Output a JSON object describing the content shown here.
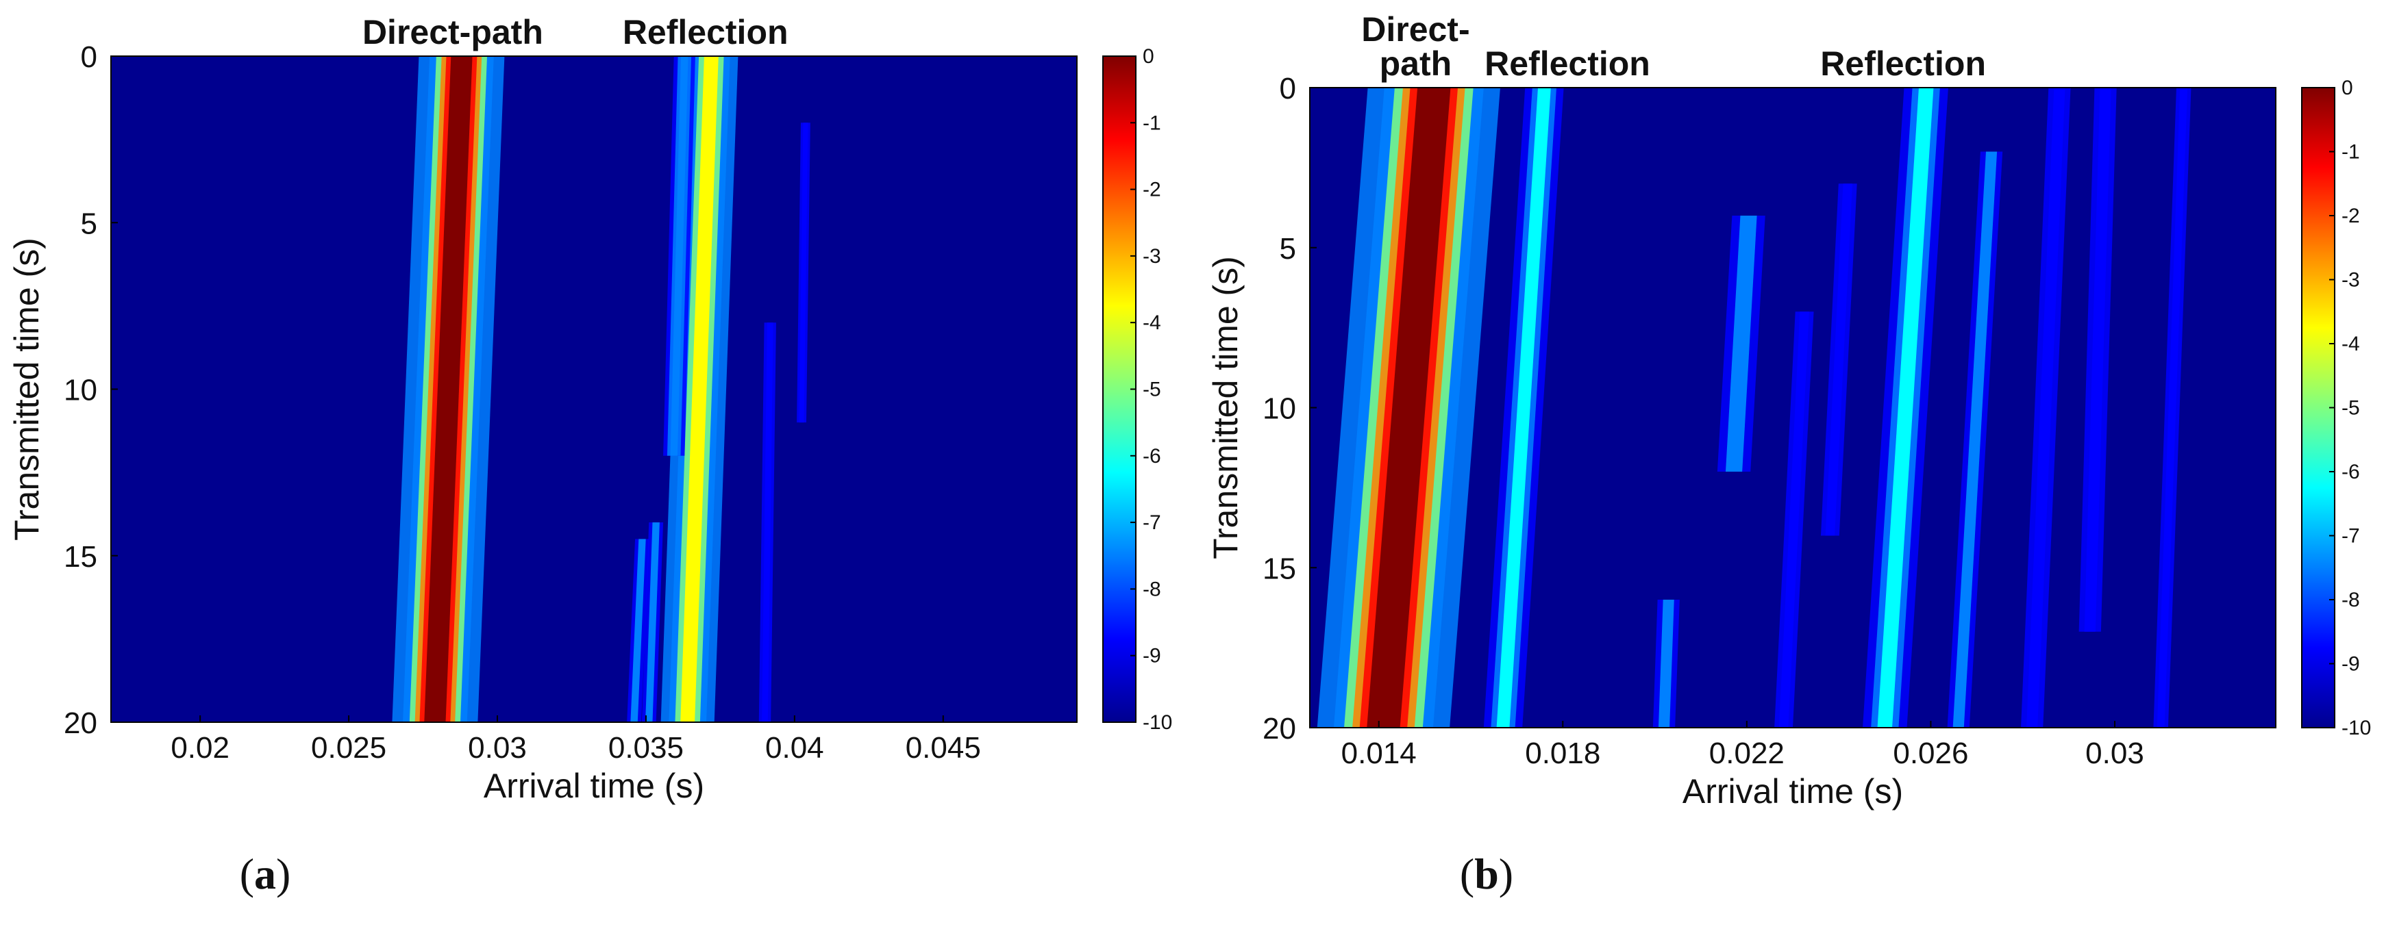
{
  "colors": {
    "background": "#00008f",
    "axis": "#000000"
  },
  "colormap": [
    "#00008f",
    "#0000ff",
    "#0080ff",
    "#00ffff",
    "#80ff80",
    "#ffff00",
    "#ff8000",
    "#ff0000",
    "#800000"
  ],
  "panels": [
    {
      "label_open": "(",
      "label_letter": "a",
      "label_close": ")"
    },
    {
      "label_open": "(",
      "label_letter": "b",
      "label_close": ")"
    }
  ],
  "chart_data": [
    {
      "type": "heatmap",
      "xlabel": "Arrival time (s)",
      "ylabel": "Transmitted time (s)",
      "xlim": [
        0.017,
        0.0495
      ],
      "ylim": [
        0,
        20
      ],
      "y_reversed": true,
      "x_ticks": [
        0.02,
        0.025,
        0.03,
        0.035,
        0.04,
        0.045
      ],
      "x_tick_labels": [
        "0.02",
        "0.025",
        "0.03",
        "0.035",
        "0.04",
        "0.045"
      ],
      "y_ticks": [
        0,
        5,
        10,
        15,
        20
      ],
      "y_tick_labels": [
        "0",
        "5",
        "10",
        "15",
        "20"
      ],
      "colorbar": {
        "range": [
          -10,
          0
        ],
        "ticks": [
          0,
          -1,
          -2,
          -3,
          -4,
          -5,
          -6,
          -7,
          -8,
          -9,
          -10
        ],
        "tick_labels": [
          "0",
          "-1",
          "-2",
          "-3",
          "-4",
          "-5",
          "-6",
          "-7",
          "-8",
          "-9",
          "-10"
        ]
      },
      "annotations": [
        {
          "text": "Direct-path",
          "x": 0.0285
        },
        {
          "text": "Reflection",
          "x": 0.037
        }
      ],
      "paths": [
        {
          "x0": 0.0288,
          "x20": 0.0279,
          "level": 0,
          "width": 0.0009
        },
        {
          "x0": 0.0372,
          "x20": 0.0364,
          "level": -4,
          "width": 0.0006
        },
        {
          "x0": 0.0363,
          "x20": 0.0357,
          "level": -7,
          "width": 0.0003,
          "y_start": 0,
          "y_end": 12
        },
        {
          "x0": 0.0359,
          "x20": 0.0351,
          "level": -8,
          "width": 0.0003,
          "y_start": 14,
          "y_end": 20
        },
        {
          "x0": 0.0356,
          "x20": 0.0346,
          "level": -8,
          "width": 0.0003,
          "y_start": 14.5,
          "y_end": 20
        },
        {
          "x0": 0.0404,
          "x20": 0.0401,
          "level": -8.5,
          "width": 0.0002,
          "y_start": 2,
          "y_end": 11
        },
        {
          "x0": 0.0393,
          "x20": 0.039,
          "level": -8.5,
          "width": 0.00025,
          "y_start": 8,
          "y_end": 20
        }
      ]
    },
    {
      "type": "heatmap",
      "xlabel": "Arrival time (s)",
      "ylabel": "Transmitted time (s)",
      "xlim": [
        0.0125,
        0.0335
      ],
      "ylim": [
        0,
        20
      ],
      "y_reversed": true,
      "x_ticks": [
        0.014,
        0.018,
        0.022,
        0.026,
        0.03
      ],
      "x_tick_labels": [
        "0.014",
        "0.018",
        "0.022",
        "0.026",
        "0.03"
      ],
      "y_ticks": [
        0,
        5,
        10,
        15,
        20
      ],
      "y_tick_labels": [
        "0",
        "5",
        "10",
        "15",
        "20"
      ],
      "colorbar": {
        "range": [
          -10,
          0
        ],
        "ticks": [
          0,
          -1,
          -2,
          -3,
          -4,
          -5,
          -6,
          -7,
          -8,
          -9,
          -10
        ],
        "tick_labels": [
          "0",
          "-1",
          "-2",
          "-3",
          "-4",
          "-5",
          "-6",
          "-7",
          "-8",
          "-9",
          "-10"
        ]
      },
      "annotations": [
        {
          "text": "Direct-",
          "text2": "path",
          "x": 0.0148
        },
        {
          "text": "Reflection",
          "x": 0.0181
        },
        {
          "text": "Reflection",
          "x": 0.0254
        }
      ],
      "paths": [
        {
          "x0": 0.0152,
          "x20": 0.0141,
          "level": 0,
          "width": 0.0009
        },
        {
          "x0": 0.0176,
          "x20": 0.0167,
          "level": -6.5,
          "width": 0.00035
        },
        {
          "x0": 0.0259,
          "x20": 0.025,
          "level": -6,
          "width": 0.0004
        },
        {
          "x0": 0.0222,
          "x20": 0.0214,
          "level": -8,
          "width": 0.00045,
          "y_start": 4,
          "y_end": 12
        },
        {
          "x0": 0.0207,
          "x20": 0.0202,
          "level": -8,
          "width": 0.0003,
          "y_start": 16,
          "y_end": 20
        },
        {
          "x0": 0.0235,
          "x20": 0.0228,
          "level": -8.5,
          "width": 0.00025,
          "y_start": 7,
          "y_end": 20
        },
        {
          "x0": 0.0243,
          "x20": 0.0236,
          "level": -8.5,
          "width": 0.00025,
          "y_start": 3,
          "y_end": 14
        },
        {
          "x0": 0.0274,
          "x20": 0.0266,
          "level": -8,
          "width": 0.0003,
          "y_start": 2,
          "y_end": 20
        },
        {
          "x0": 0.0288,
          "x20": 0.0282,
          "level": -8.5,
          "width": 0.0003,
          "y_start": 0,
          "y_end": 20
        },
        {
          "x0": 0.0298,
          "x20": 0.0294,
          "level": -9,
          "width": 0.0003,
          "y_start": 0,
          "y_end": 17
        },
        {
          "x0": 0.0315,
          "x20": 0.031,
          "level": -9,
          "width": 0.0002,
          "y_start": 0,
          "y_end": 20
        }
      ]
    }
  ]
}
